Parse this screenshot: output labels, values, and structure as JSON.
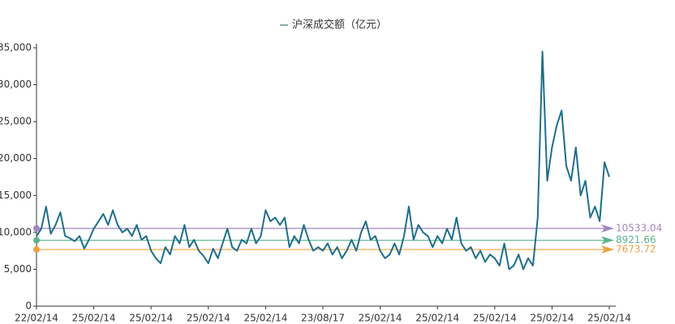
{
  "chart_data": {
    "type": "line",
    "categories": [
      "22/02/14",
      null,
      null,
      null,
      null,
      null,
      null,
      null,
      null,
      null,
      null,
      null,
      "25/02/14",
      null,
      null,
      null,
      null,
      null,
      null,
      null,
      null,
      null,
      null,
      null,
      "25/02/14",
      null,
      null,
      null,
      null,
      null,
      null,
      null,
      null,
      null,
      null,
      null,
      "25/02/14",
      null,
      null,
      null,
      null,
      null,
      null,
      null,
      null,
      null,
      null,
      null,
      "25/02/14",
      null,
      null,
      null,
      null,
      null,
      null,
      null,
      null,
      null,
      null,
      null,
      "23/08/17",
      null,
      null,
      null,
      null,
      null,
      null,
      null,
      null,
      null,
      null,
      null,
      "25/02/14",
      null,
      null,
      null,
      null,
      null,
      null,
      null,
      null,
      null,
      null,
      null,
      "25/02/14",
      null,
      null,
      null,
      null,
      null,
      null,
      null,
      null,
      null,
      null,
      null,
      "25/02/14",
      null,
      null,
      null,
      null,
      null,
      null,
      null,
      null,
      null,
      null,
      null,
      "25/02/14",
      null,
      null,
      null,
      null,
      null,
      null,
      null,
      null,
      null,
      null,
      null,
      "25/02/14"
    ],
    "series": [
      {
        "name": "沪深成交额（亿元）",
        "color": "#1f6e8c",
        "values": [
          9500,
          10500,
          13500,
          9800,
          11000,
          12700,
          9500,
          9200,
          8800,
          9500,
          7800,
          9000,
          10500,
          11500,
          12500,
          11000,
          13000,
          11000,
          10000,
          10500,
          9500,
          11000,
          9000,
          9500,
          7500,
          6500,
          5800,
          8000,
          7000,
          9500,
          8500,
          11000,
          8000,
          9000,
          7500,
          6800,
          5800,
          7800,
          6500,
          8500,
          10500,
          8000,
          7500,
          9000,
          8500,
          10500,
          8500,
          9500,
          13000,
          11500,
          12000,
          11000,
          12000,
          8000,
          9500,
          8500,
          11000,
          9000,
          7500,
          8000,
          7500,
          8500,
          7000,
          8000,
          6500,
          7500,
          9000,
          7500,
          10000,
          11500,
          9000,
          9500,
          7500,
          6500,
          7000,
          8500,
          7000,
          9500,
          13500,
          9000,
          11000,
          10000,
          9500,
          8000,
          9500,
          8500,
          10500,
          9000,
          12000,
          8500,
          7500,
          8000,
          6500,
          7500,
          6000,
          7000,
          6500,
          5500,
          8500,
          5000,
          5500,
          7000,
          5000,
          6500,
          5500,
          12000,
          34500,
          17000,
          21500,
          24500,
          26500,
          19000,
          17000,
          21500,
          15000,
          17000,
          12000,
          13500,
          11500,
          19500,
          17500
        ]
      }
    ],
    "reference_lines": [
      {
        "value": 10533.04,
        "color": "#a087c0"
      },
      {
        "value": 8921.66,
        "color": "#5ab48c"
      },
      {
        "value": 7673.72,
        "color": "#f0a040"
      }
    ],
    "ylim": [
      0,
      35000
    ],
    "yticks": [
      0,
      {
        "value": 5000,
        "label": "5,000"
      },
      {
        "value": 10000,
        "label": "10,000"
      },
      {
        "value": 15000,
        "label": "15,000"
      },
      {
        "value": 20000,
        "label": "20,000"
      },
      {
        "value": 25000,
        "label": "25,000"
      },
      {
        "value": 30000,
        "label": "30,000"
      },
      {
        "value": 35000,
        "label": "35,000"
      }
    ],
    "legend": "top"
  }
}
